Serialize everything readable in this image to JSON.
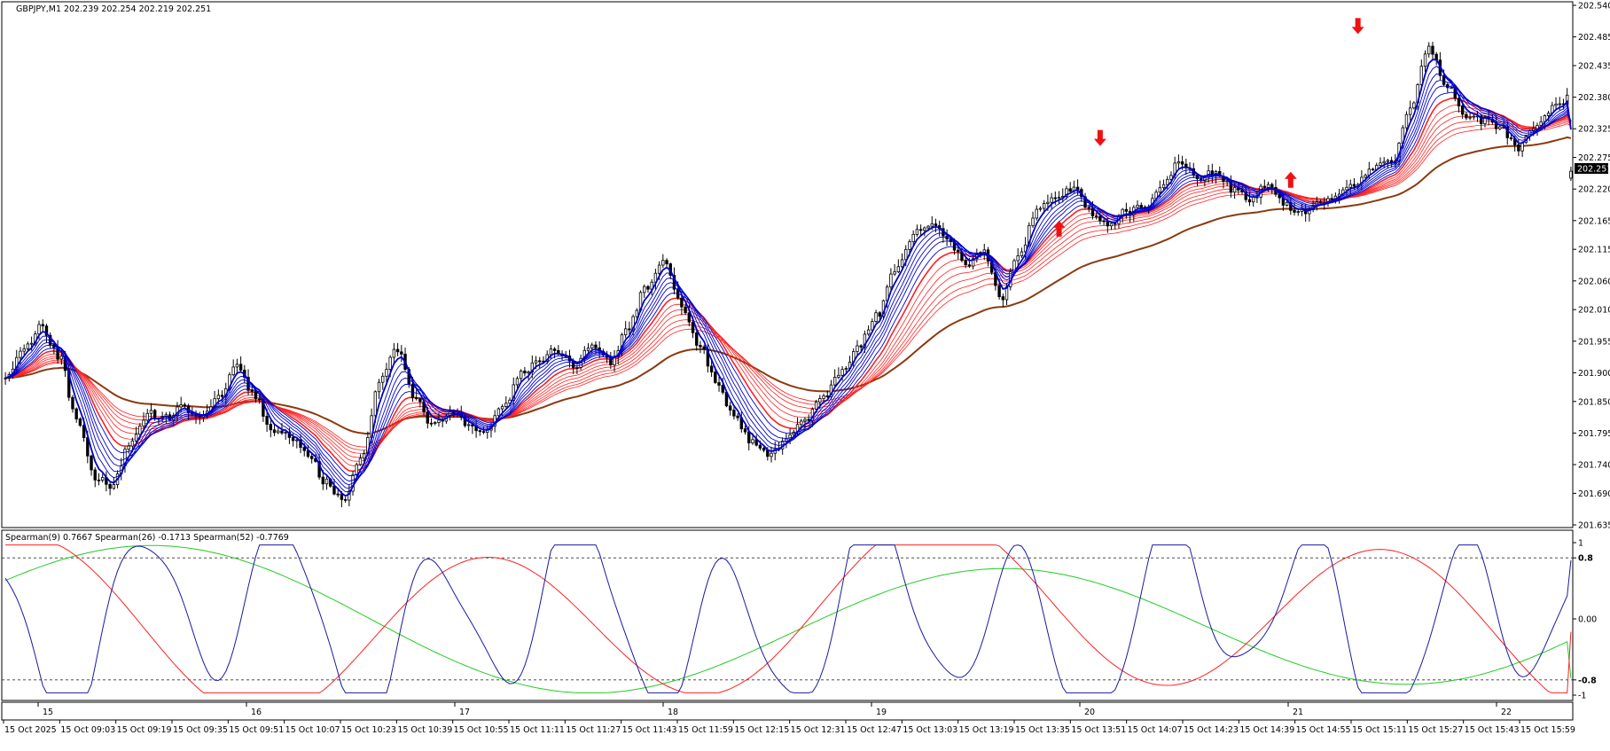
{
  "main_header": "GBPJPY,M1  202.239 202.254 202.219 202.251",
  "indicator_header": "Spearman(9) 0.7667  Spearman(26) -0.1713  Spearman(52) -0.7769",
  "current_price": "202.251",
  "colors": {
    "background": "#ffffff",
    "candle": "#000000",
    "fast_ema": "#0000cc",
    "slow_ema": "#ff2020",
    "long_ema": "#8b3a0f",
    "arrow": "#ee1111",
    "spearman_9": "#1a1aa0",
    "spearman_26": "#ff2020",
    "spearman_52": "#22cc22",
    "price_box": "#000000"
  },
  "chart_data": [
    {
      "type": "candlestick",
      "symbol": "GBPJPY",
      "timeframe": "M1",
      "ohlc_last": {
        "open": 202.239,
        "high": 202.254,
        "low": 202.219,
        "close": 202.251
      },
      "ylim": [
        201.635,
        202.54
      ],
      "y_ticks": [
        "202.540",
        "202.485",
        "202.435",
        "202.380",
        "202.325",
        "202.275",
        "202.220",
        "202.165",
        "202.115",
        "202.060",
        "202.010",
        "201.955",
        "201.900",
        "201.850",
        "201.795",
        "201.740",
        "201.690",
        "201.635"
      ],
      "x_ticks_top": [
        "15",
        "16",
        "17",
        "18",
        "19",
        "20",
        "21",
        "22"
      ],
      "x_ticks_bottom": [
        "15 Oct 2025",
        "15 Oct 09:03",
        "15 Oct 09:19",
        "15 Oct 09:35",
        "15 Oct 09:51",
        "15 Oct 10:07",
        "15 Oct 10:23",
        "15 Oct 10:39",
        "15 Oct 10:55",
        "15 Oct 11:11",
        "15 Oct 11:27",
        "15 Oct 11:43",
        "15 Oct 11:59",
        "15 Oct 12:15",
        "15 Oct 12:31",
        "15 Oct 12:47",
        "15 Oct 13:03",
        "15 Oct 13:19",
        "15 Oct 13:35",
        "15 Oct 13:51",
        "15 Oct 14:07",
        "15 Oct 14:23",
        "15 Oct 14:39",
        "15 Oct 14:55",
        "15 Oct 15:11",
        "15 Oct 15:27",
        "15 Oct 15:43",
        "15 Oct 15:59"
      ],
      "close_path": [
        201.89,
        201.94,
        201.98,
        201.93,
        201.82,
        201.72,
        201.7,
        201.78,
        201.83,
        201.82,
        201.84,
        201.82,
        201.86,
        201.91,
        201.86,
        201.8,
        201.79,
        201.76,
        201.71,
        201.68,
        201.75,
        201.88,
        201.94,
        201.86,
        201.81,
        201.83,
        201.81,
        201.8,
        201.84,
        201.9,
        201.92,
        201.94,
        201.91,
        201.95,
        201.92,
        201.98,
        202.05,
        202.09,
        202.02,
        201.95,
        201.88,
        201.82,
        201.78,
        201.76,
        201.79,
        201.82,
        201.86,
        201.9,
        201.95,
        202.0,
        202.08,
        202.14,
        202.16,
        202.13,
        202.09,
        202.11,
        202.03,
        202.11,
        202.18,
        202.21,
        202.22,
        202.18,
        202.16,
        202.18,
        202.19,
        202.22,
        202.27,
        202.24,
        202.25,
        202.22,
        202.2,
        202.23,
        202.19,
        202.18,
        202.2,
        202.21,
        202.23,
        202.26,
        202.27,
        202.36,
        202.47,
        202.4,
        202.35,
        202.34,
        202.33,
        202.29,
        202.33,
        202.36,
        202.38
      ],
      "arrows": [
        {
          "direction": "down",
          "price": 202.295
        },
        {
          "direction": "up",
          "price": 202.165
        },
        {
          "direction": "up",
          "price": 202.25
        },
        {
          "direction": "down",
          "price": 202.49
        }
      ],
      "overlays": [
        "fast EMA ribbon (blue)",
        "slow EMA ribbon (red)",
        "long EMA (brown)"
      ]
    },
    {
      "type": "line",
      "title": "Spearman",
      "ylim": [
        -1,
        1
      ],
      "levels": [
        0.8,
        -0.8
      ],
      "y_ticks": [
        "1",
        "0.8",
        "0.00",
        "-0.8",
        "-1"
      ],
      "series": [
        {
          "name": "Spearman(9)",
          "last": 0.7667
        },
        {
          "name": "Spearman(26)",
          "last": -0.1713
        },
        {
          "name": "Spearman(52)",
          "last": -0.7769
        }
      ]
    }
  ]
}
